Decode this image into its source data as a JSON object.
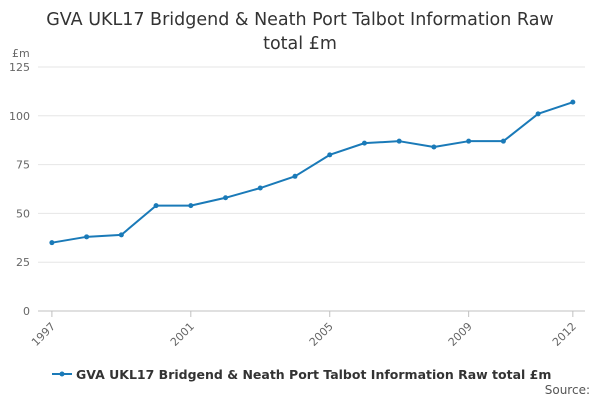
{
  "chart_data": {
    "type": "line",
    "title": "GVA UKL17 Bridgend & Neath Port Talbot Information Raw total £m",
    "ylabel": "£m",
    "xlabel": "",
    "ylim": [
      0,
      125
    ],
    "yticks": [
      0,
      25,
      50,
      75,
      100,
      125
    ],
    "xticks": [
      1997,
      2001,
      2005,
      2009,
      2012
    ],
    "grid": true,
    "legend_position": "bottom",
    "color": "#1a7ab8",
    "series": [
      {
        "name": "GVA UKL17 Bridgend & Neath Port Talbot Information Raw total £m",
        "x": [
          1997,
          1998,
          1999,
          2000,
          2001,
          2002,
          2003,
          2004,
          2005,
          2006,
          2007,
          2008,
          2009,
          2010,
          2011,
          2012
        ],
        "values": [
          35,
          38,
          39,
          54,
          54,
          58,
          63,
          69,
          80,
          86,
          87,
          84,
          87,
          87,
          101,
          107
        ]
      }
    ]
  },
  "source_label": "Source:"
}
